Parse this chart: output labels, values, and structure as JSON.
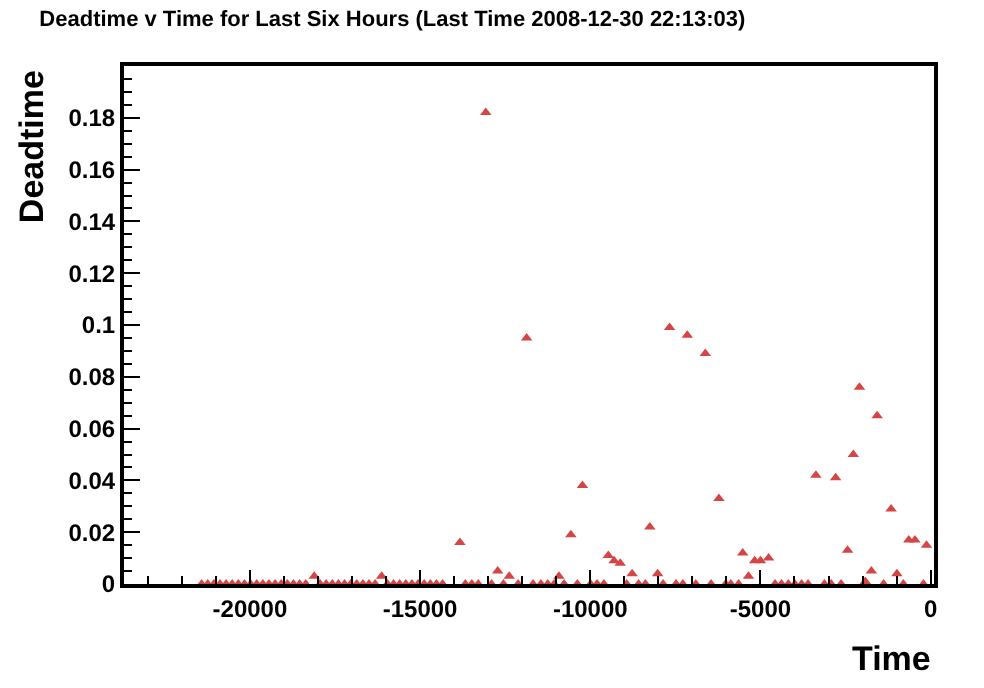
{
  "chart_data": {
    "type": "scatter",
    "title": "Deadtime v Time for Last Six Hours (Last Time 2008-12-30 22:13:03)",
    "xlabel": "Time",
    "ylabel": "Deadtime",
    "xlim": [
      -23700,
      100
    ],
    "xticks": [
      -20000,
      -15000,
      -10000,
      -5000,
      0
    ],
    "ylim": [
      0,
      0.2
    ],
    "yticks": [
      0,
      0.02,
      0.04,
      0.06,
      0.08,
      0.1,
      0.12,
      0.14,
      0.16,
      0.18
    ],
    "marker": "triangle",
    "series": [
      {
        "color": "#d64545",
        "x": [
          -21420,
          -21240,
          -21060,
          -20880,
          -20700,
          -20520,
          -20340,
          -20160,
          -19980,
          -19800,
          -19620,
          -19440,
          -19260,
          -19080,
          -18900,
          -18720,
          -18540,
          -18360,
          -18110,
          -17940,
          -17760,
          -17580,
          -17400,
          -17220,
          -17040,
          -16860,
          -16680,
          -16500,
          -16320,
          -16130,
          -15960,
          -15780,
          -15600,
          -15420,
          -15240,
          -15060,
          -14880,
          -14700,
          -14520,
          -14340,
          -13830,
          -13670,
          -13480,
          -13290,
          -13070,
          -12900,
          -12720,
          -12550,
          -12380,
          -12120,
          -11870,
          -11680,
          -11450,
          -11250,
          -11060,
          -10920,
          -10770,
          -10570,
          -10380,
          -10230,
          -9990,
          -9800,
          -9600,
          -9470,
          -9300,
          -9120,
          -8930,
          -8770,
          -8580,
          -8380,
          -8250,
          -8020,
          -7860,
          -7670,
          -7480,
          -7280,
          -7150,
          -6900,
          -6620,
          -6450,
          -6220,
          -6020,
          -5870,
          -5640,
          -5520,
          -5350,
          -5170,
          -5000,
          -4760,
          -4570,
          -4380,
          -4180,
          -3990,
          -3790,
          -3600,
          -3370,
          -3120,
          -2920,
          -2790,
          -2630,
          -2440,
          -2270,
          -2090,
          -1920,
          -1740,
          -1570,
          -1380,
          -1160,
          -990,
          -800,
          -640,
          -460,
          -210,
          -120
        ],
        "values": [
          0,
          0,
          0,
          0,
          0,
          0,
          0,
          0,
          0,
          0,
          0,
          0,
          0,
          0,
          0,
          0,
          0,
          0,
          0.003,
          0,
          0,
          0,
          0,
          0,
          0,
          0,
          0,
          0,
          0,
          0.003,
          0,
          0,
          0,
          0,
          0,
          0,
          0,
          0,
          0,
          0,
          0.016,
          0,
          0,
          0,
          0.182,
          0,
          0.005,
          0,
          0.003,
          0,
          0.095,
          0,
          0,
          0,
          0,
          0.003,
          0,
          0.019,
          0,
          0.038,
          0,
          0,
          0,
          0.011,
          0.009,
          0.008,
          0,
          0.004,
          0,
          0,
          0.022,
          0.004,
          0,
          0.099,
          0,
          0,
          0.096,
          0,
          0.089,
          0,
          0.033,
          0,
          0,
          0,
          0.012,
          0.003,
          0.009,
          0.009,
          0.01,
          0,
          0,
          0,
          0,
          0,
          0,
          0.042,
          0,
          0,
          0.041,
          0,
          0.013,
          0.05,
          0.076,
          0.001,
          0.005,
          0.065,
          0,
          0.029,
          0.004,
          0,
          0.017,
          0.017,
          0,
          0.015
        ]
      }
    ]
  }
}
